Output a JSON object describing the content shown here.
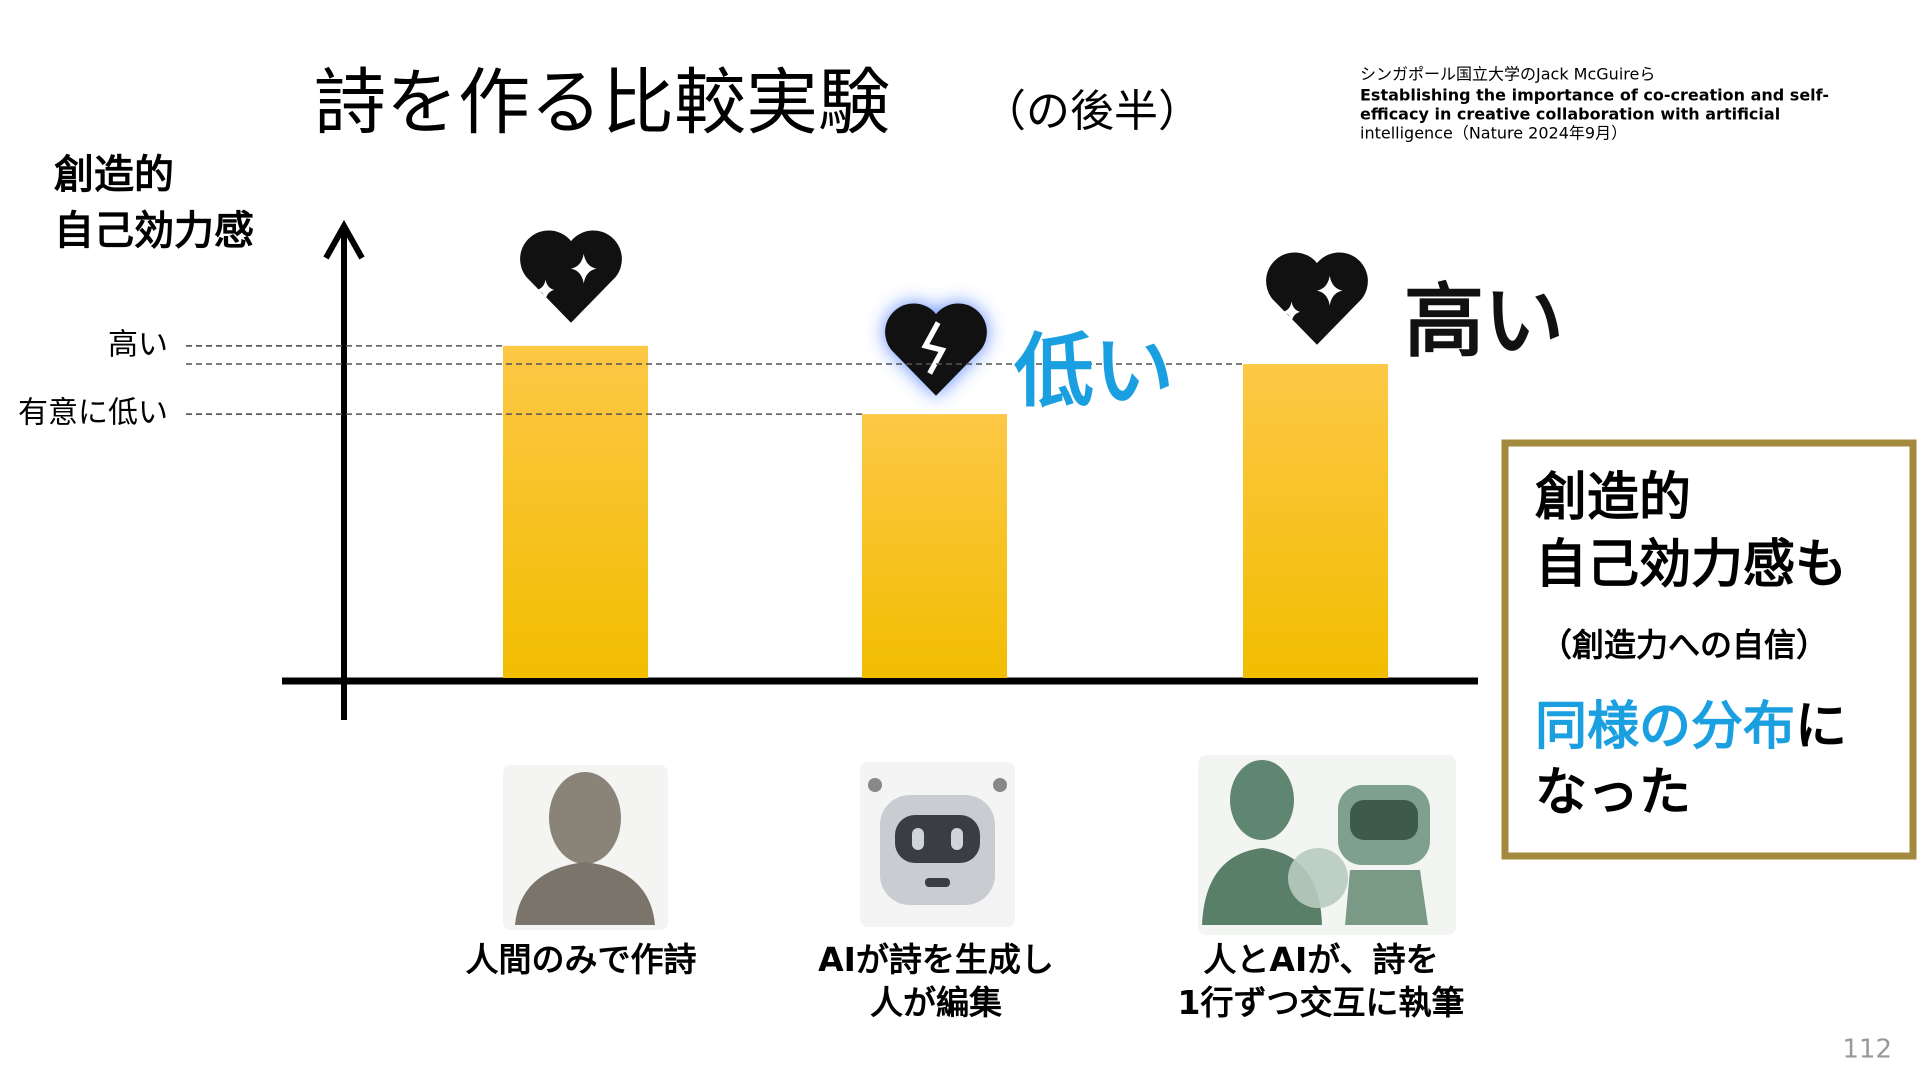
{
  "chart_data": {
    "type": "bar",
    "title": "詩を作る比較実験",
    "subtitle": "（の後半）",
    "y_label": [
      "創造的",
      "自己効力感"
    ],
    "categories": [
      "人間のみで作詩",
      "AIが詩を生成し\n人が編集",
      "人とAIが、詩を\n1行ずつ交互に執筆"
    ],
    "values": [
      73,
      58,
      69
    ],
    "color": "#fcc52a",
    "ylim": [
      0,
      100
    ],
    "yticks": [
      {
        "value": 73,
        "label": "高い"
      },
      {
        "value": 58,
        "label": "有意に低い"
      }
    ],
    "annotations": [
      "",
      "低い",
      "高い"
    ]
  },
  "citation": [
    "シンガポール国立大学のJack McGuireら",
    "Establishing the importance of co-creation and self-",
    "efficacy in creative collaboration with artificial",
    "intelligence（Nature 2024年9月）"
  ],
  "callout": {
    "lines": [
      "創造的",
      "自己効力感も"
    ],
    "note": "（創造力への自信）",
    "highlight": "同様の分布",
    "highlight_rest": "に",
    "last": "なった"
  },
  "page_number": "112"
}
